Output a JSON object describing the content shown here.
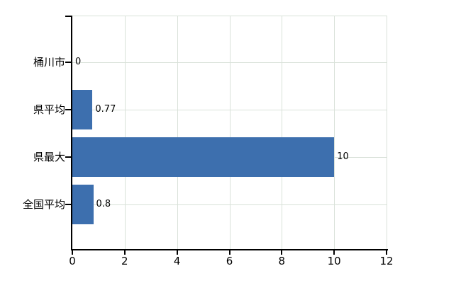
{
  "chart_data": {
    "type": "bar",
    "orientation": "horizontal",
    "title": "",
    "categories": [
      "桶川市",
      "県平均",
      "県最大",
      "全国平均"
    ],
    "values": [
      0,
      0.77,
      10,
      0.8
    ],
    "value_labels": [
      "0",
      "0.77",
      "10",
      "0.8"
    ],
    "xlim": [
      0,
      12
    ],
    "xticks": [
      0,
      2,
      4,
      6,
      8,
      10,
      12
    ],
    "grid": true,
    "legend": false,
    "colors": {
      "bar": "#3d6fae",
      "grid": "#d9e1d9",
      "axis": "#000000",
      "text": "#000000",
      "background": "#ffffff"
    }
  }
}
